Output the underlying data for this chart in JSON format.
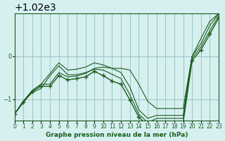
{
  "title": "Graphe pression niveau de la mer (hPa)",
  "bg_color": "#d6f0f0",
  "grid_color": "#a0c8c8",
  "line_color": "#1a5c1a",
  "marker_color": "#1a5c1a",
  "xlim": [
    0,
    23
  ],
  "ylim": [
    1018.5,
    1021.0
  ],
  "yticks": [
    1019,
    1020
  ],
  "xticks": [
    0,
    1,
    2,
    3,
    4,
    5,
    6,
    7,
    8,
    9,
    10,
    11,
    12,
    13,
    14,
    15,
    16,
    17,
    18,
    19,
    20,
    21,
    22,
    23
  ],
  "series": [
    {
      "x": [
        0,
        1,
        2,
        3,
        4,
        5,
        6,
        7,
        8,
        9,
        10,
        11,
        12,
        13,
        14,
        15,
        16,
        17,
        18,
        19,
        20,
        21,
        22,
        23
      ],
      "y": [
        1018.65,
        1018.95,
        1019.2,
        1019.35,
        1019.35,
        1019.62,
        1019.52,
        1019.54,
        1019.6,
        1019.72,
        1019.75,
        1019.72,
        1019.72,
        1019.68,
        1019.35,
        1018.95,
        1018.78,
        1018.78,
        1018.78,
        1018.78,
        1020.0,
        1020.42,
        1020.82,
        1021.0
      ],
      "has_markers": false
    },
    {
      "x": [
        0,
        1,
        2,
        3,
        4,
        5,
        6,
        7,
        8,
        9,
        10,
        11,
        12,
        13,
        14,
        15,
        16,
        17,
        18,
        19,
        20,
        21,
        22,
        23
      ],
      "y": [
        1018.65,
        1018.95,
        1019.2,
        1019.35,
        1019.6,
        1019.85,
        1019.68,
        1019.7,
        1019.75,
        1019.85,
        1019.8,
        1019.72,
        1019.62,
        1019.28,
        1018.75,
        1018.55,
        1018.62,
        1018.62,
        1018.62,
        1018.62,
        1020.0,
        1020.3,
        1020.72,
        1021.0
      ],
      "has_markers": false
    },
    {
      "x": [
        0,
        1,
        2,
        3,
        4,
        5,
        6,
        7,
        8,
        9,
        10,
        11,
        12,
        13,
        14,
        15,
        16,
        17,
        18,
        19,
        20,
        21,
        22,
        23
      ],
      "y": [
        1018.65,
        1018.95,
        1019.15,
        1019.25,
        1019.55,
        1019.78,
        1019.57,
        1019.57,
        1019.62,
        1019.7,
        1019.68,
        1019.58,
        1019.48,
        1019.1,
        1018.65,
        1018.45,
        1018.55,
        1018.55,
        1018.55,
        1018.55,
        1019.95,
        1020.22,
        1020.6,
        1020.95
      ],
      "has_markers": false
    },
    {
      "x": [
        0,
        1,
        2,
        3,
        4,
        5,
        6,
        7,
        8,
        9,
        10,
        11,
        12,
        13,
        14,
        15,
        16,
        17,
        18,
        19,
        20,
        21,
        22,
        23
      ],
      "y": [
        1018.65,
        1018.92,
        1019.18,
        1019.3,
        1019.3,
        1019.55,
        1019.45,
        1019.48,
        1019.52,
        1019.65,
        1019.55,
        1019.42,
        1019.35,
        1018.98,
        1018.58,
        1018.38,
        1018.45,
        1018.45,
        1018.45,
        1018.45,
        1019.9,
        1020.15,
        1020.52,
        1020.9
      ],
      "has_markers": true
    }
  ]
}
